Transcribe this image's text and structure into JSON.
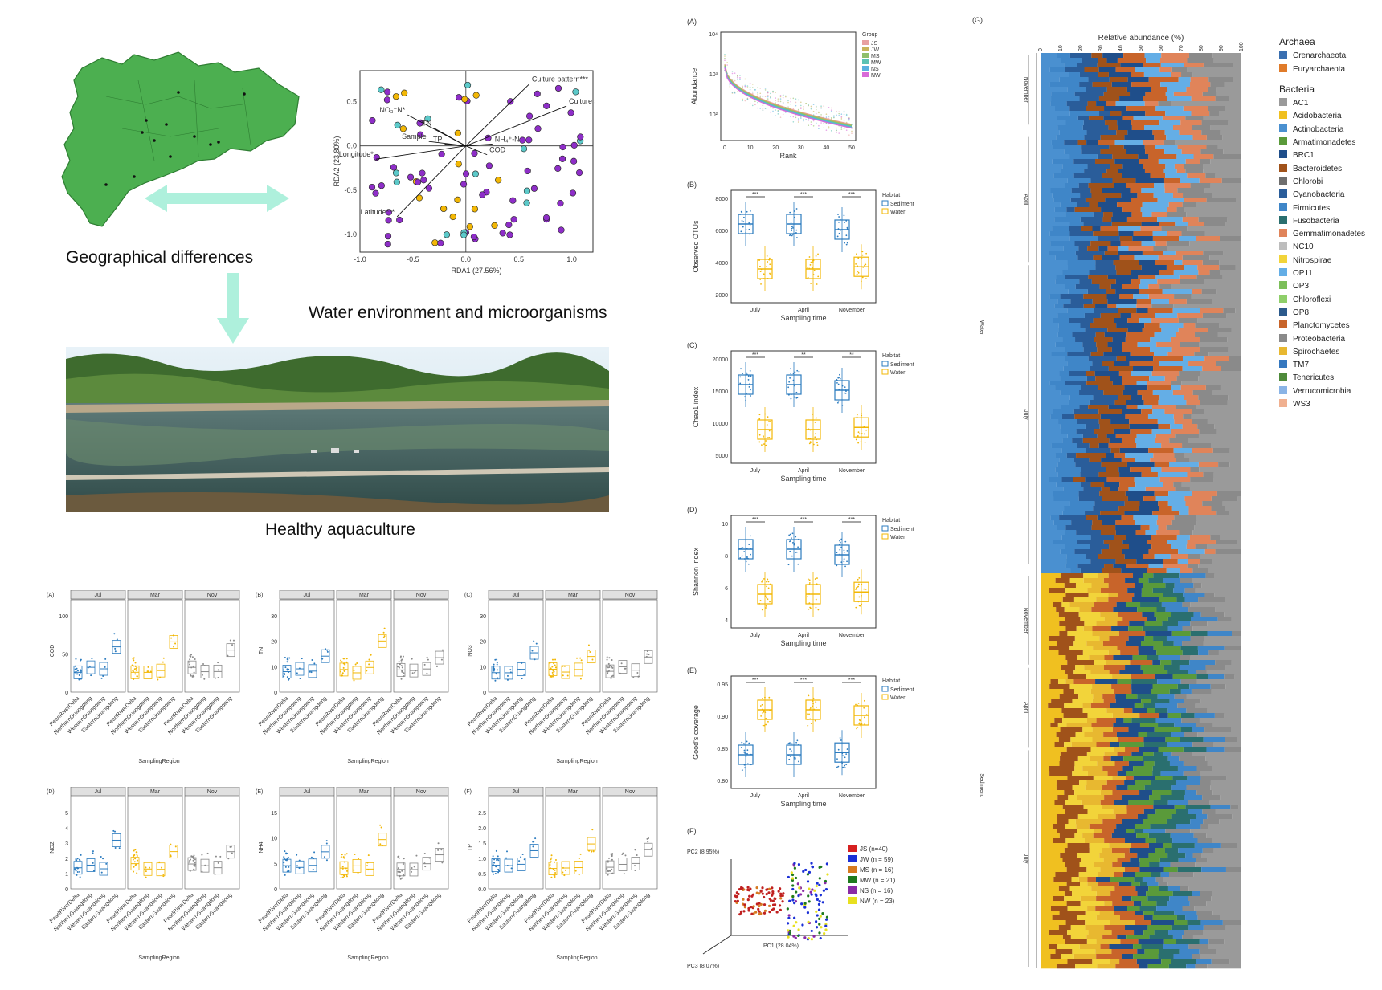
{
  "captions": {
    "geo": "Geographical differences",
    "water": "Water environment and microorganisms",
    "healthy": "Healthy aquaculture"
  },
  "rda": {
    "xlabel": "RDA1 (27.56%)",
    "ylabel": "RDA2 (23.80%)",
    "xticks": [
      "-1.0",
      "-0.5",
      "0.0",
      "0.5",
      "1.0"
    ],
    "yticks": [
      "0.5",
      "0.0",
      "-0.5",
      "-1.0"
    ],
    "arrows": [
      "Culture pattern***",
      "Culture species***",
      "NO₃⁻N*",
      "Longitude*",
      "Latitude***",
      "TN",
      "Sample",
      "TP",
      "NH₄⁺-N",
      "COD"
    ]
  },
  "panel_A_top": {
    "label": "(A)",
    "xlabel": "Rank",
    "ylabel": "Abundance",
    "xticks": [
      "0",
      "10",
      "20",
      "30",
      "40",
      "50"
    ],
    "yticks": [
      "10⁴",
      "10³",
      "10²"
    ],
    "legend_title": "Group",
    "groups": [
      "JS",
      "JW",
      "MS",
      "MW",
      "NS",
      "NW"
    ],
    "colors": [
      "#e8a0a0",
      "#c9b45a",
      "#8fbf6a",
      "#5cc2b4",
      "#5ab0e0",
      "#d86ad8"
    ]
  },
  "boxpanels": [
    {
      "label": "(B)",
      "ylabel": "Observed OTUs",
      "yticks": [
        "8000",
        "6000",
        "4000",
        "2000"
      ],
      "sig": [
        "***",
        "***",
        "***"
      ]
    },
    {
      "label": "(C)",
      "ylabel": "Chao1 index",
      "yticks": [
        "20000",
        "15000",
        "10000",
        "5000"
      ],
      "sig": [
        "***",
        "**",
        "**"
      ]
    },
    {
      "label": "(D)",
      "ylabel": "Shannon index",
      "yticks": [
        "10",
        "8",
        "6",
        "4"
      ],
      "sig": [
        "***",
        "***",
        "***"
      ]
    },
    {
      "label": "(E)",
      "ylabel": "Good's coverage",
      "yticks": [
        "0.95",
        "0.90",
        "0.85",
        "0.80"
      ],
      "sig": [
        "***",
        "***",
        "***"
      ]
    }
  ],
  "box_common": {
    "xticks": [
      "July",
      "April",
      "November"
    ],
    "xlabel": "Sampling time",
    "legend_title": "Habitat",
    "legend": [
      "Sediment",
      "Water"
    ],
    "sediment_color": "#2b7bbf",
    "water_color": "#f2b705"
  },
  "pca": {
    "label": "(F)",
    "pc1": "PC1 (28.04%)",
    "pc2": "PC2 (8.95%)",
    "pc3": "PC3 (8.07%)",
    "legend": [
      {
        "name": "JS (n=40)",
        "color": "#d62020"
      },
      {
        "name": "JW (n = 59)",
        "color": "#1a2fd6"
      },
      {
        "name": "MS (n = 16)",
        "color": "#d67a20"
      },
      {
        "name": "MW (n = 21)",
        "color": "#1e7a1e"
      },
      {
        "name": "NS (n = 16)",
        "color": "#8a2aa6"
      },
      {
        "name": "NW (n = 23)",
        "color": "#e8e020"
      }
    ]
  },
  "panel_G": {
    "label": "(G)",
    "xlabel": "Relative abundance (%)",
    "xticks": [
      "0",
      "10",
      "20",
      "30",
      "40",
      "50",
      "60",
      "70",
      "80",
      "90",
      "100"
    ],
    "groups_right": [
      "Water",
      "Sediment"
    ],
    "months": [
      "November",
      "April",
      "July",
      "November",
      "April",
      "July"
    ],
    "archaea_title": "Archaea",
    "archaea": [
      {
        "name": "Crenarchaeota",
        "color": "#3a6fb0"
      },
      {
        "name": "Euryarchaeota",
        "color": "#e07b2a"
      }
    ],
    "bacteria_title": "Bacteria",
    "bacteria": [
      {
        "name": "AC1",
        "color": "#9a9a9a"
      },
      {
        "name": "Acidobacteria",
        "color": "#f0c020"
      },
      {
        "name": "Actinobacteria",
        "color": "#4a90d0"
      },
      {
        "name": "Armatimonadetes",
        "color": "#5a9a3a"
      },
      {
        "name": "BRC1",
        "color": "#1f4e8a"
      },
      {
        "name": "Bacteroidetes",
        "color": "#a0521a"
      },
      {
        "name": "Chlorobi",
        "color": "#6e6e6e"
      },
      {
        "name": "Cyanobacteria",
        "color": "#2a5d9a"
      },
      {
        "name": "Firmicutes",
        "color": "#3f86c8"
      },
      {
        "name": "Fusobacteria",
        "color": "#2a6f6f"
      },
      {
        "name": "Gemmatimonadetes",
        "color": "#e0845a"
      },
      {
        "name": "NC10",
        "color": "#bdbdbd"
      },
      {
        "name": "Nitrospirae",
        "color": "#f2d43a"
      },
      {
        "name": "OP11",
        "color": "#64aee6"
      },
      {
        "name": "OP3",
        "color": "#7cbf5a"
      },
      {
        "name": "Chloroflexi",
        "color": "#8fcf6a"
      },
      {
        "name": "OP8",
        "color": "#2c5a8c"
      },
      {
        "name": "Planctomycetes",
        "color": "#c8642a"
      },
      {
        "name": "Proteobacteria",
        "color": "#8a8a8a"
      },
      {
        "name": "Spirochaetes",
        "color": "#e8b830"
      },
      {
        "name": "TM7",
        "color": "#3578bf"
      },
      {
        "name": "Tenericutes",
        "color": "#4e8a3a"
      },
      {
        "name": "Verrucomicrobia",
        "color": "#8ab4e6"
      },
      {
        "name": "WS3",
        "color": "#f0b090"
      }
    ]
  },
  "region_panels": [
    {
      "label": "(A)",
      "ylabel": "COD",
      "yticks": [
        "100",
        "50",
        "0"
      ]
    },
    {
      "label": "(B)",
      "ylabel": "TN",
      "yticks": [
        "30",
        "20",
        "10",
        "0"
      ]
    },
    {
      "label": "(C)",
      "ylabel": "NO3",
      "yticks": [
        "30",
        "20",
        "10",
        "0"
      ]
    },
    {
      "label": "(D)",
      "ylabel": "NO2",
      "yticks": [
        "5",
        "4",
        "3",
        "2",
        "1",
        "0"
      ]
    },
    {
      "label": "(E)",
      "ylabel": "NH4",
      "yticks": [
        "15",
        "10",
        "5",
        "0"
      ]
    },
    {
      "label": "(F)",
      "ylabel": "TP",
      "yticks": [
        "2.5",
        "2.0",
        "1.5",
        "1.0",
        "0.5",
        "0.0"
      ]
    }
  ],
  "region_common": {
    "facets": [
      "Jul",
      "Mar",
      "Nov"
    ],
    "regions": [
      "PearlRiverDelta",
      "NorthernGuangdong",
      "WesternGuangdong",
      "EasternGuangdong"
    ],
    "xlabel": "SamplingRegion",
    "colors": [
      "#2b7bbf",
      "#f2b705",
      "#8a8a8a"
    ]
  }
}
